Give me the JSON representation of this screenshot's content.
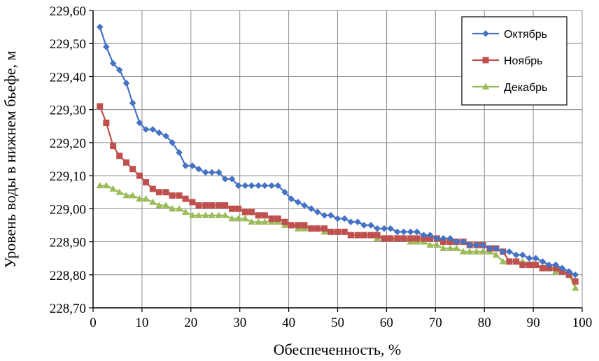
{
  "chart_data": {
    "type": "line",
    "title": "",
    "xlabel": "Обеспеченность, %",
    "ylabel": "Уровень воды в нижнем бьефе, м",
    "xlim": [
      0,
      100
    ],
    "ylim": [
      228.7,
      229.6
    ],
    "x_ticks": [
      0,
      10,
      20,
      30,
      40,
      50,
      60,
      70,
      80,
      90,
      100
    ],
    "x_tick_labels": [
      "0",
      "10",
      "20",
      "30",
      "40",
      "50",
      "60",
      "70",
      "80",
      "90",
      "100"
    ],
    "y_ticks": [
      228.7,
      228.8,
      228.9,
      229.0,
      229.1,
      229.2,
      229.3,
      229.4,
      229.5,
      229.6
    ],
    "y_tick_labels": [
      "228,70",
      "228,80",
      "228,90",
      "229,00",
      "229,10",
      "229,20",
      "229,30",
      "229,40",
      "229,50",
      "229,60"
    ],
    "grid": true,
    "legend_position": "top-right",
    "series": [
      {
        "name": "Октябрь",
        "color": "#4472C4",
        "marker": "diamond",
        "x": [
          1.4,
          2.7,
          4.1,
          5.4,
          6.8,
          8.1,
          9.5,
          10.8,
          12.2,
          13.5,
          14.9,
          16.2,
          17.6,
          18.9,
          20.3,
          21.6,
          23.0,
          24.3,
          25.7,
          27.0,
          28.4,
          29.7,
          31.1,
          32.4,
          33.8,
          35.1,
          36.5,
          37.8,
          39.2,
          40.5,
          41.9,
          43.2,
          44.6,
          45.9,
          47.3,
          48.6,
          50.0,
          51.4,
          52.7,
          54.1,
          55.4,
          56.8,
          58.1,
          59.5,
          60.8,
          62.2,
          63.5,
          64.9,
          66.2,
          67.6,
          68.9,
          70.3,
          71.6,
          73.0,
          74.3,
          75.7,
          77.0,
          78.4,
          79.7,
          81.1,
          82.4,
          83.8,
          85.1,
          86.5,
          87.8,
          89.2,
          90.5,
          91.9,
          93.2,
          94.6,
          95.9,
          97.3,
          98.6
        ],
        "values": [
          229.55,
          229.49,
          229.44,
          229.42,
          229.38,
          229.32,
          229.26,
          229.24,
          229.24,
          229.23,
          229.22,
          229.2,
          229.17,
          229.13,
          229.13,
          229.12,
          229.11,
          229.11,
          229.11,
          229.09,
          229.09,
          229.07,
          229.07,
          229.07,
          229.07,
          229.07,
          229.07,
          229.07,
          229.05,
          229.03,
          229.02,
          229.01,
          229.0,
          228.99,
          228.98,
          228.98,
          228.97,
          228.97,
          228.96,
          228.96,
          228.95,
          228.95,
          228.94,
          228.94,
          228.94,
          228.93,
          228.93,
          228.93,
          228.93,
          228.92,
          228.92,
          228.91,
          228.91,
          228.91,
          228.9,
          228.9,
          228.89,
          228.89,
          228.89,
          228.88,
          228.88,
          228.87,
          228.87,
          228.86,
          228.86,
          228.85,
          228.85,
          228.84,
          228.83,
          228.83,
          228.82,
          228.81,
          228.8
        ]
      },
      {
        "name": "Ноябрь",
        "color": "#C0504D",
        "marker": "square",
        "x": [
          1.4,
          2.7,
          4.1,
          5.4,
          6.8,
          8.1,
          9.5,
          10.8,
          12.2,
          13.5,
          14.9,
          16.2,
          17.6,
          18.9,
          20.3,
          21.6,
          23.0,
          24.3,
          25.7,
          27.0,
          28.4,
          29.7,
          31.1,
          32.4,
          33.8,
          35.1,
          36.5,
          37.8,
          39.2,
          40.5,
          41.9,
          43.2,
          44.6,
          45.9,
          47.3,
          48.6,
          50.0,
          51.4,
          52.7,
          54.1,
          55.4,
          56.8,
          58.1,
          59.5,
          60.8,
          62.2,
          63.5,
          64.9,
          66.2,
          67.6,
          68.9,
          70.3,
          71.6,
          73.0,
          74.3,
          75.7,
          77.0,
          78.4,
          79.7,
          81.1,
          82.4,
          83.8,
          85.1,
          86.5,
          87.8,
          89.2,
          90.5,
          91.9,
          93.2,
          94.6,
          95.9,
          97.3,
          98.6
        ],
        "values": [
          229.31,
          229.26,
          229.19,
          229.16,
          229.14,
          229.12,
          229.1,
          229.08,
          229.06,
          229.05,
          229.05,
          229.04,
          229.04,
          229.03,
          229.02,
          229.01,
          229.01,
          229.01,
          229.01,
          229.01,
          229.0,
          229.0,
          228.99,
          228.99,
          228.98,
          228.98,
          228.97,
          228.97,
          228.96,
          228.95,
          228.95,
          228.95,
          228.94,
          228.94,
          228.94,
          228.93,
          228.93,
          228.93,
          228.92,
          228.92,
          228.92,
          228.92,
          228.92,
          228.91,
          228.91,
          228.91,
          228.91,
          228.91,
          228.91,
          228.91,
          228.91,
          228.91,
          228.9,
          228.9,
          228.9,
          228.9,
          228.89,
          228.89,
          228.89,
          228.88,
          228.88,
          228.87,
          228.84,
          228.84,
          228.83,
          228.83,
          228.83,
          228.82,
          228.82,
          228.82,
          228.81,
          228.8,
          228.78
        ]
      },
      {
        "name": "Декабрь",
        "color": "#9BBB59",
        "marker": "triangle",
        "x": [
          1.4,
          2.7,
          4.1,
          5.4,
          6.8,
          8.1,
          9.5,
          10.8,
          12.2,
          13.5,
          14.9,
          16.2,
          17.6,
          18.9,
          20.3,
          21.6,
          23.0,
          24.3,
          25.7,
          27.0,
          28.4,
          29.7,
          31.1,
          32.4,
          33.8,
          35.1,
          36.5,
          37.8,
          39.2,
          40.5,
          41.9,
          43.2,
          44.6,
          45.9,
          47.3,
          48.6,
          50.0,
          51.4,
          52.7,
          54.1,
          55.4,
          56.8,
          58.1,
          59.5,
          60.8,
          62.2,
          63.5,
          64.9,
          66.2,
          67.6,
          68.9,
          70.3,
          71.6,
          73.0,
          74.3,
          75.7,
          77.0,
          78.4,
          79.7,
          81.1,
          82.4,
          83.8,
          85.1,
          86.5,
          87.8,
          89.2,
          90.5,
          91.9,
          93.2,
          94.6,
          95.9,
          97.3,
          98.6
        ],
        "values": [
          229.07,
          229.07,
          229.06,
          229.05,
          229.04,
          229.04,
          229.03,
          229.03,
          229.02,
          229.01,
          229.01,
          229.0,
          229.0,
          228.99,
          228.98,
          228.98,
          228.98,
          228.98,
          228.98,
          228.98,
          228.97,
          228.97,
          228.97,
          228.96,
          228.96,
          228.96,
          228.96,
          228.96,
          228.95,
          228.95,
          228.94,
          228.94,
          228.94,
          228.94,
          228.93,
          228.93,
          228.93,
          228.93,
          228.92,
          228.92,
          228.92,
          228.92,
          228.91,
          228.91,
          228.91,
          228.91,
          228.91,
          228.9,
          228.9,
          228.9,
          228.89,
          228.89,
          228.88,
          228.88,
          228.88,
          228.87,
          228.87,
          228.87,
          228.87,
          228.87,
          228.86,
          228.84,
          228.84,
          228.84,
          228.84,
          228.83,
          228.83,
          228.82,
          228.82,
          228.81,
          228.81,
          228.8,
          228.76
        ]
      }
    ]
  }
}
